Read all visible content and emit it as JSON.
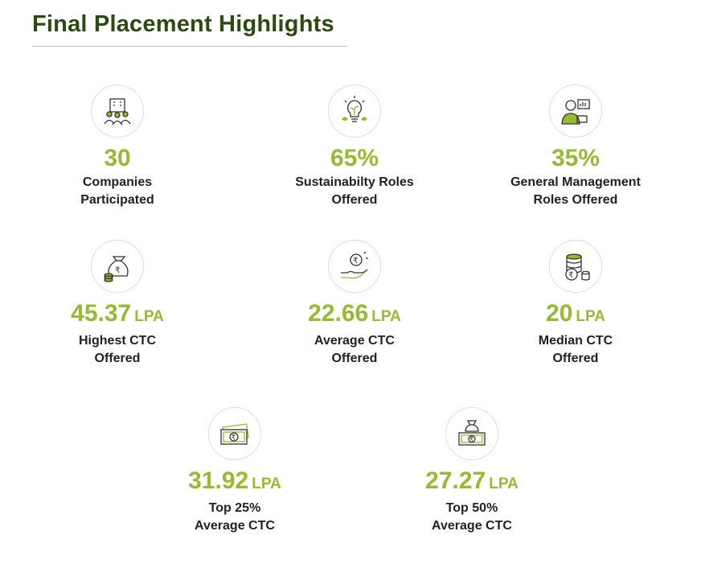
{
  "title": "Final Placement Highlights",
  "accent_color": "#97ba32",
  "title_color": "#2c4a14",
  "stats": [
    {
      "icon": "companies-icon",
      "value": "30",
      "unit": "",
      "label_line1": "Companies",
      "label_line2": "Participated"
    },
    {
      "icon": "lightbulb-icon",
      "value": "65%",
      "unit": "",
      "label_line1": "Sustainabilty Roles",
      "label_line2": "Offered"
    },
    {
      "icon": "manager-icon",
      "value": "35%",
      "unit": "",
      "label_line1": "General Management",
      "label_line2": "Roles Offered"
    },
    {
      "icon": "money-bag-icon",
      "value": "45.37",
      "unit": "LPA",
      "label_line1": "Highest CTC",
      "label_line2": "Offered"
    },
    {
      "icon": "coin-hand-icon",
      "value": "22.66",
      "unit": "LPA",
      "label_line1": "Average CTC",
      "label_line2": "Offered"
    },
    {
      "icon": "coin-stack-icon",
      "value": "20",
      "unit": "LPA",
      "label_line1": "Median CTC",
      "label_line2": "Offered"
    },
    {
      "icon": "banknote-icon",
      "value": "31.92",
      "unit": "LPA",
      "label_line1": "Top 25%",
      "label_line2": "Average CTC"
    },
    {
      "icon": "cash-bag-icon",
      "value": "27.27",
      "unit": "LPA",
      "label_line1": "Top 50%",
      "label_line2": "Average CTC"
    }
  ]
}
